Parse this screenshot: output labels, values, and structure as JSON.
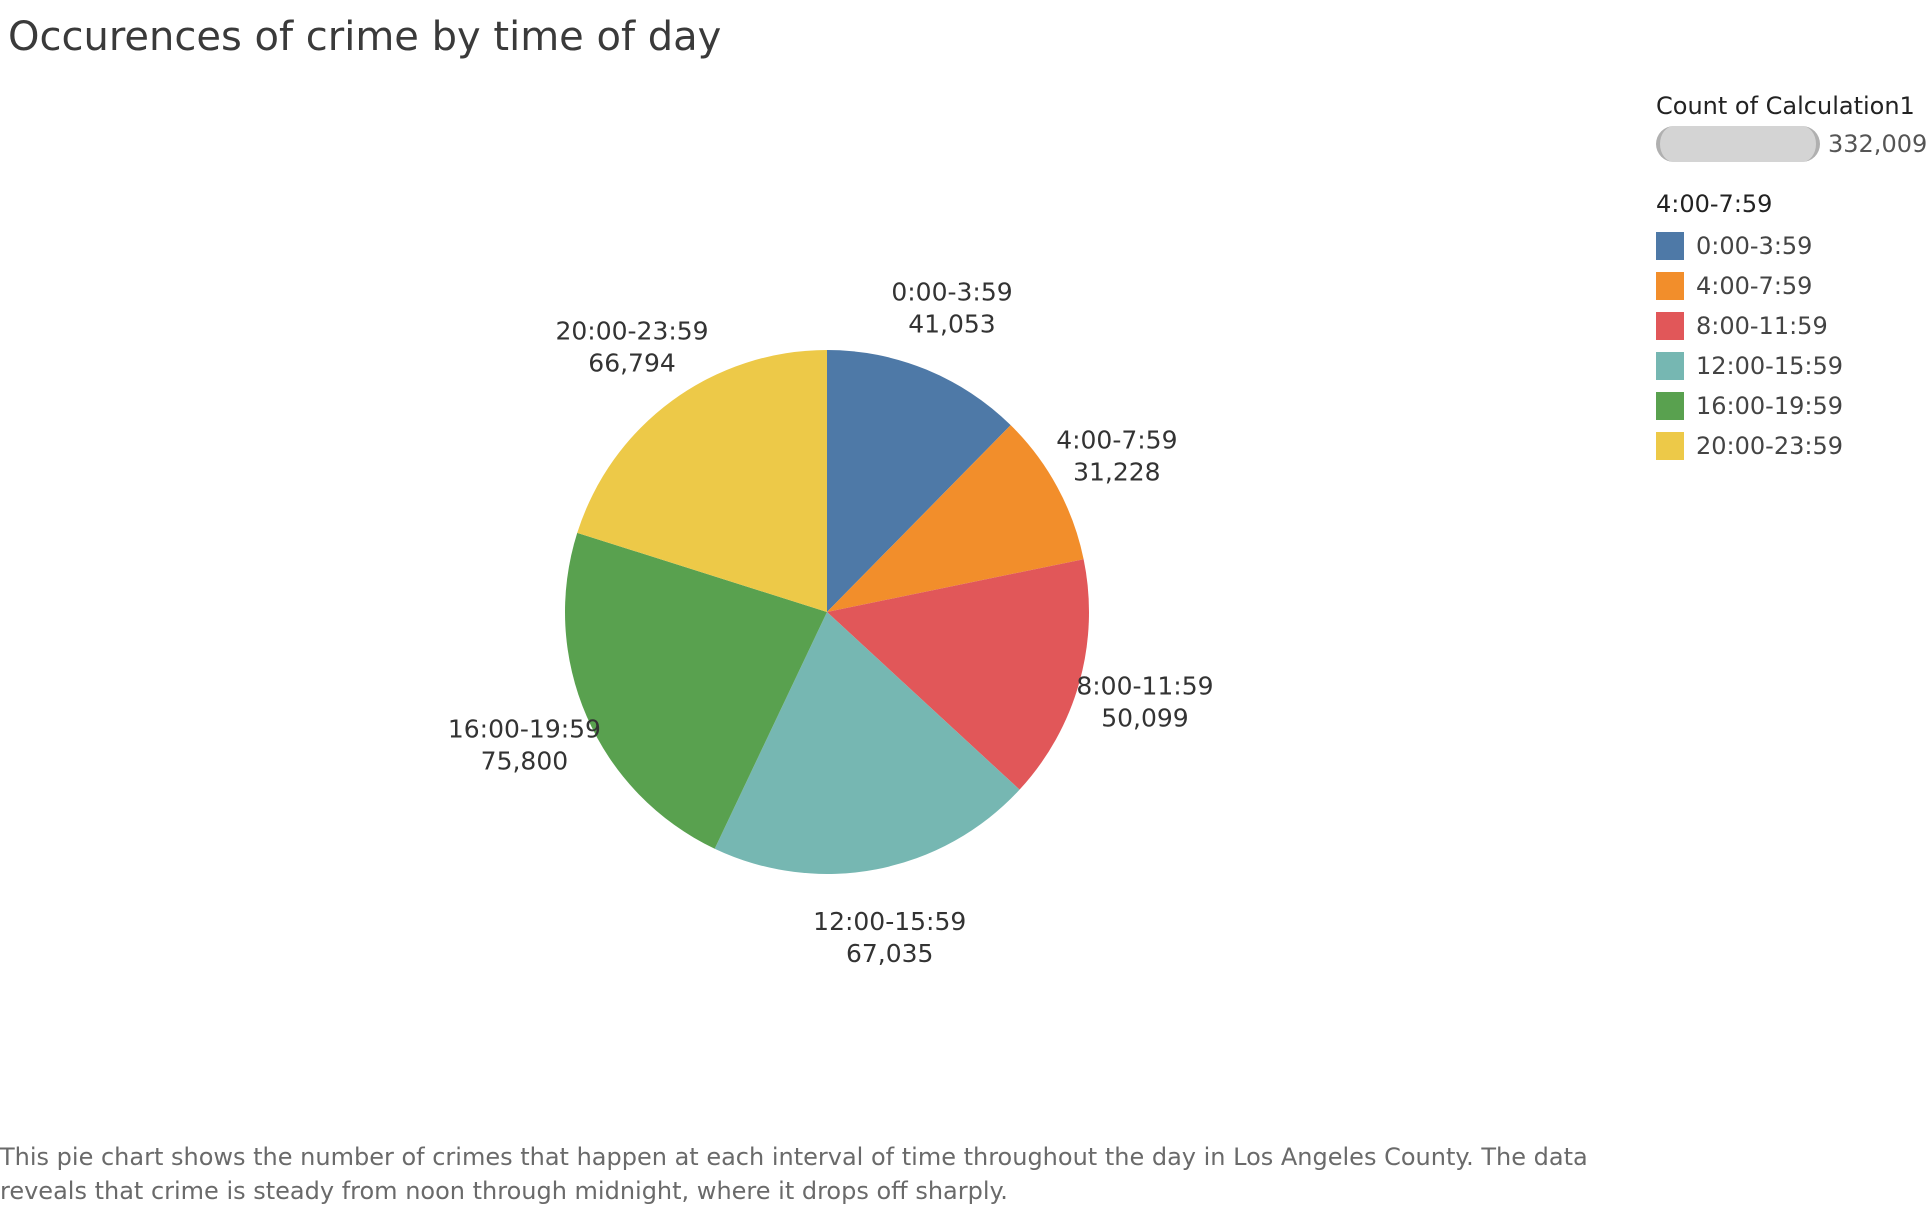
{
  "title": "Occurences of crime by time of day",
  "chart_data": {
    "type": "pie",
    "categories": [
      "0:00-3:59",
      "4:00-7:59",
      "8:00-11:59",
      "12:00-15:59",
      "16:00-19:59",
      "20:00-23:59"
    ],
    "values": [
      41053,
      31228,
      50099,
      67035,
      75800,
      66794
    ],
    "value_labels": [
      "41,053",
      "31,228",
      "50,099",
      "67,035",
      "75,800",
      "66,794"
    ],
    "colors": [
      "#4e79a7",
      "#f28e2b",
      "#e15759",
      "#76b7b2",
      "#59a14f",
      "#edc948"
    ],
    "start": "12 o'clock",
    "direction": "clockwise",
    "legend_placement": "right"
  },
  "legend": {
    "size_title": "Count of Calculation1",
    "size_value": "332,009",
    "color_title": "4:00-7:59",
    "items": [
      {
        "label": "0:00-3:59",
        "color": "#4e79a7"
      },
      {
        "label": "4:00-7:59",
        "color": "#f28e2b"
      },
      {
        "label": "8:00-11:59",
        "color": "#e15759"
      },
      {
        "label": "12:00-15:59",
        "color": "#76b7b2"
      },
      {
        "label": "16:00-19:59",
        "color": "#59a14f"
      },
      {
        "label": "20:00-23:59",
        "color": "#edc948"
      }
    ]
  },
  "caption": "This pie chart shows the number of crimes that happen at each interval of time throughout the day in Los Angeles County. The data reveals that crime is steady from noon through midnight, where it drops off sharply."
}
